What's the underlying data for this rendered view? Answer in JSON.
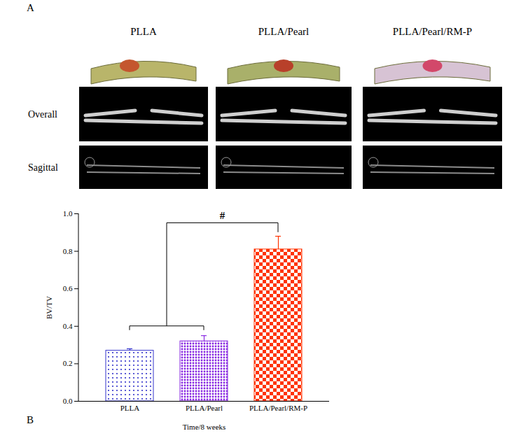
{
  "panel_a": {
    "label": "A",
    "columns": [
      "PLLA",
      "PLLA/Pearl",
      "PLLA/Pearl/RM-P"
    ],
    "rows": [
      "Overall",
      "Sagittal"
    ]
  },
  "chart_data": {
    "type": "bar",
    "panel_label": "B",
    "categories": [
      "PLLA",
      "PLLA/Pearl",
      "PLLA/Pearl/RM-P"
    ],
    "values": [
      0.27,
      0.32,
      0.81
    ],
    "errors": [
      0.01,
      0.03,
      0.07
    ],
    "colors": [
      "#3333cc",
      "#8a2be2",
      "#ff3300"
    ],
    "x_label": "Time/8 weeks",
    "y_label": "BV/TV",
    "ylim": [
      0,
      1
    ],
    "yticks": [
      {
        "value": 0,
        "label": "0.0"
      },
      {
        "value": 0.2,
        "label": "0.2"
      },
      {
        "value": 0.4,
        "label": "0.4"
      },
      {
        "value": 0.6,
        "label": "0.6"
      },
      {
        "value": 0.8,
        "label": "0.8"
      },
      {
        "value": 1,
        "label": "1.0"
      }
    ],
    "annotations": [
      {
        "text": "#",
        "between": [
          [
            "PLLA",
            "PLLA/Pearl"
          ],
          [
            "PLLA/Pearl/RM-P"
          ]
        ]
      }
    ],
    "grid": false
  }
}
